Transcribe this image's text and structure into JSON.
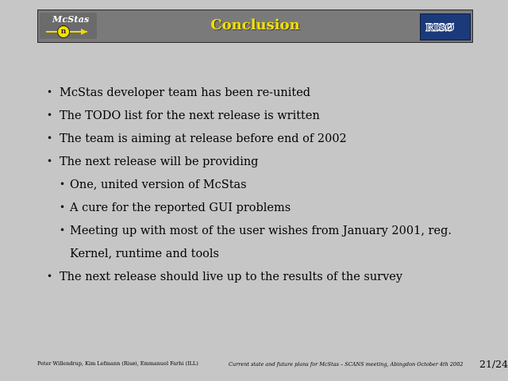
{
  "header": {
    "title": "Conclusion",
    "logo_left_text": "McStas",
    "logo_left_symbol": "n",
    "logo_right_text": "RISØ"
  },
  "bullets": [
    {
      "text": "McStas developer team has been re-united"
    },
    {
      "text": "The TODO list for the next release is written"
    },
    {
      "text": "The team is aiming at release before end of 2002"
    },
    {
      "text": "The next release will be providing"
    },
    {
      "text": "One, united version of McStas"
    },
    {
      "text": "A cure for the reported GUI problems"
    },
    {
      "text": "Meeting up with most of the user wishes from January 2001, reg."
    },
    {
      "text": "Kernel, runtime and tools"
    },
    {
      "text": "The next release should live up to the results of the survey"
    }
  ],
  "bullet_glyph": "•",
  "footer": {
    "authors": "Peter Willendrup, Kim Lefmann (Risø), Emmanuel Farhi (ILL)",
    "subtitle": "Current state and future plans for McStas – SCANS meeting, Abingdon October 4th 2002",
    "page": "21/24"
  }
}
